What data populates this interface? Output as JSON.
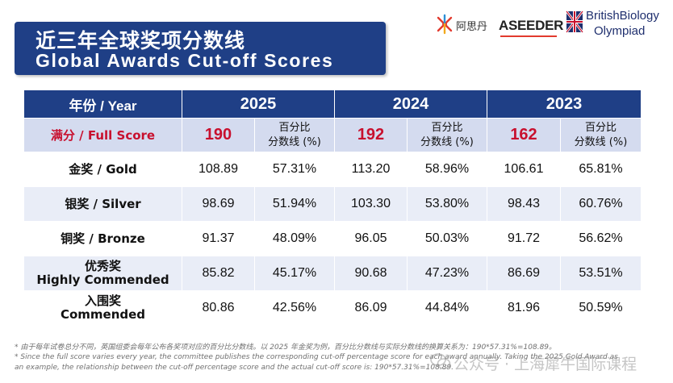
{
  "title": {
    "cn": "近三年全球奖项分数线",
    "en": "Global Awards Cut-off Scores"
  },
  "logos": {
    "ident_text": "阿思丹",
    "aseeder": "ASEEDER",
    "bbo_line1": "BritishBiology",
    "bbo_line2": "Olympiad"
  },
  "table": {
    "year_label": "年份 / Year",
    "years": [
      "2025",
      "2024",
      "2023"
    ],
    "full_score_label": "满分 / Full Score",
    "full_scores": [
      "190",
      "192",
      "162"
    ],
    "pct_label_line1": "百分比",
    "pct_label_line2": "分数线 (%)",
    "rows": [
      {
        "label": "金奖 / Gold",
        "values": [
          "108.89",
          "57.31%",
          "113.20",
          "58.96%",
          "106.61",
          "65.81%"
        ]
      },
      {
        "label": "银奖 / Silver",
        "values": [
          "98.69",
          "51.94%",
          "103.30",
          "53.80%",
          "98.43",
          "60.76%"
        ]
      },
      {
        "label": "铜奖 / Bronze",
        "values": [
          "91.37",
          "48.09%",
          "96.05",
          "50.03%",
          "91.72",
          "56.62%"
        ]
      },
      {
        "label_line1": "优秀奖",
        "label_line2": "Highly Commended",
        "values": [
          "85.82",
          "45.17%",
          "90.68",
          "47.23%",
          "86.69",
          "53.51%"
        ]
      },
      {
        "label_line1": "入围奖",
        "label_line2": "Commended",
        "values": [
          "80.86",
          "42.56%",
          "86.09",
          "44.84%",
          "81.96",
          "50.59%"
        ]
      }
    ]
  },
  "footnotes": {
    "line1": "* 由于每年试卷总分不同，英国组委会每年公布各奖项对应的百分比分数线。以 2025 年金奖为例，百分比分数线与实际分数线的换算关系为：190*57.31%=108.89。",
    "line2": "* Since the full score varies every year, the committee publishes the corresponding cut-off percentage score for each award annually. Taking the 2025 Gold Award as",
    "line3": "an example, the relationship between the cut-off percentage score and the actual cut-off score is: 190*57.31%=108.89."
  },
  "watermark": "公众号 · 上海犀牛国际课程",
  "colors": {
    "header_blue": "#1f3f86",
    "full_score_red": "#c8102e",
    "full_row_bg": "#d4dbef",
    "stripe_bg": "#e9edf7"
  }
}
